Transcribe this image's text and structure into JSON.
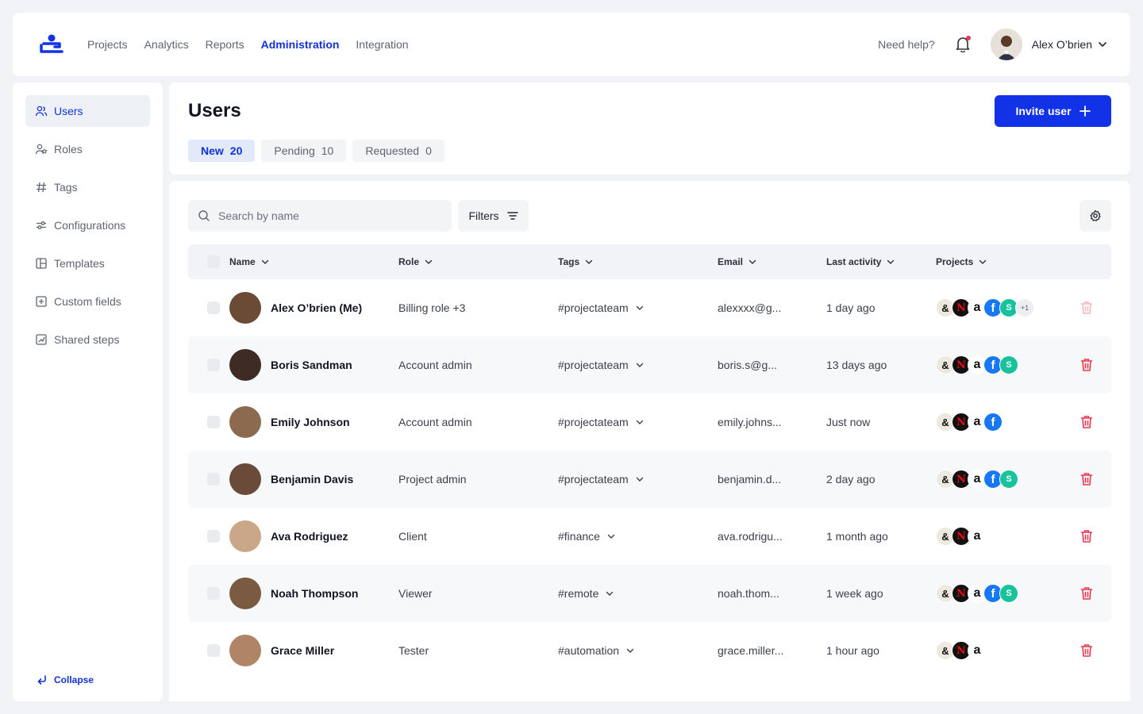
{
  "nav": {
    "items": [
      "Projects",
      "Analytics",
      "Reports",
      "Administration",
      "Integration"
    ],
    "active_index": 3
  },
  "topbar": {
    "help": "Need help?",
    "user_name": "Alex O’brien"
  },
  "sidebar": {
    "items": [
      {
        "label": "Users",
        "icon": "users-icon",
        "active": true
      },
      {
        "label": "Roles",
        "icon": "roles-icon"
      },
      {
        "label": "Tags",
        "icon": "hash-icon"
      },
      {
        "label": "Configurations",
        "icon": "sliders-icon"
      },
      {
        "label": "Templates",
        "icon": "template-icon"
      },
      {
        "label": "Custom fields",
        "icon": "plus-square-icon"
      },
      {
        "label": "Shared steps",
        "icon": "steps-icon"
      }
    ],
    "collapse": "Collapse"
  },
  "header": {
    "title": "Users",
    "invite_label": "Invite user",
    "tabs": [
      {
        "label": "New",
        "count": "20"
      },
      {
        "label": "Pending",
        "count": "10"
      },
      {
        "label": "Requested",
        "count": "0"
      }
    ]
  },
  "toolbar": {
    "search_placeholder": "Search by name",
    "filters_label": "Filters"
  },
  "table": {
    "columns": [
      "Name",
      "Role",
      "Tags",
      "Email",
      "Last activity",
      "Projects"
    ],
    "rows": [
      {
        "name": "Alex O’brien (Me)",
        "role": "Billing role +3",
        "tag": "#projectateam",
        "email": "alexxxx@g...",
        "activity": "1 day ago",
        "projects": [
          "&",
          "N",
          "a",
          "f",
          "S"
        ],
        "more": "+1"
      },
      {
        "name": "Boris Sandman",
        "role": "Account admin",
        "tag": "#projectateam",
        "email": "boris.s@g...",
        "activity": "13 days ago",
        "projects": [
          "&",
          "N",
          "a",
          "f",
          "S"
        ]
      },
      {
        "name": "Emily Johnson",
        "role": "Account admin",
        "tag": "#projectateam",
        "email": "emily.johns...",
        "activity": "Just now",
        "projects": [
          "&",
          "N",
          "a",
          "f"
        ]
      },
      {
        "name": "Benjamin Davis",
        "role": "Project admin",
        "tag": "#projectateam",
        "email": "benjamin.d...",
        "activity": "2 day ago",
        "projects": [
          "&",
          "N",
          "a",
          "f",
          "S"
        ]
      },
      {
        "name": "Ava Rodriguez",
        "role": "Client",
        "tag": "#finance",
        "email": "ava.rodrigu...",
        "activity": "1 month ago",
        "projects": [
          "&",
          "N",
          "a"
        ]
      },
      {
        "name": "Noah Thompson",
        "role": "Viewer",
        "tag": "#remote",
        "email": "noah.thom...",
        "activity": "1 week ago",
        "projects": [
          "&",
          "N",
          "a",
          "f",
          "S"
        ]
      },
      {
        "name": "Grace Miller",
        "role": "Tester",
        "tag": "#automation",
        "email": "grace.miller...",
        "activity": "1 hour ago",
        "projects": [
          "&",
          "N",
          "a"
        ]
      }
    ]
  },
  "colors": {
    "accent": "#1232e8",
    "danger": "#e8384f",
    "background": "#f1f3f6"
  }
}
